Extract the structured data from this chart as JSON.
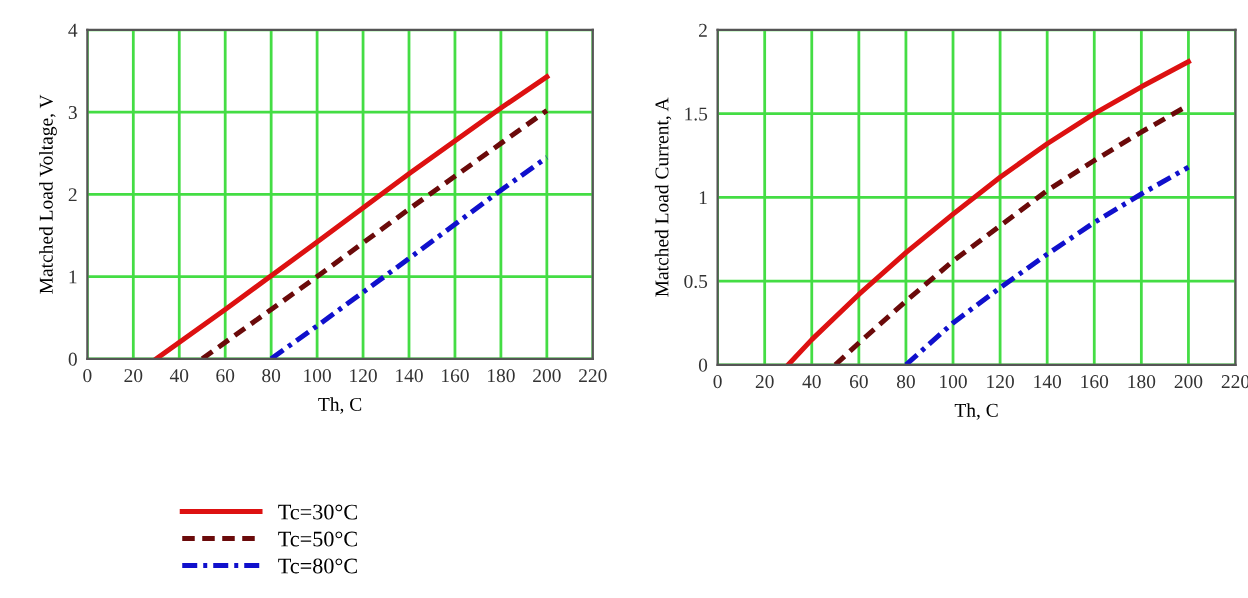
{
  "chart_data": [
    {
      "type": "line",
      "xlabel": "Th, C",
      "ylabel": "Matched Load Voltage, V",
      "xlim": [
        0,
        220
      ],
      "ylim": [
        0,
        4
      ],
      "xticks": [
        0,
        20,
        40,
        60,
        80,
        100,
        120,
        140,
        160,
        180,
        200,
        220
      ],
      "yticks": [
        0,
        1,
        2,
        3,
        4
      ],
      "grid": true,
      "legend": "bottom",
      "series": [
        {
          "name": "Tc=30°C",
          "color": "#dd1111",
          "line_style": "solid",
          "x": [
            30,
            60,
            100,
            140,
            180,
            200
          ],
          "values": [
            0,
            0.6,
            1.42,
            2.25,
            3.05,
            3.43
          ]
        },
        {
          "name": "Tc=50°C",
          "color": "#6b0a0a",
          "line_style": "dashed",
          "x": [
            50,
            80,
            100,
            140,
            180,
            200
          ],
          "values": [
            0,
            0.6,
            1.0,
            1.82,
            2.62,
            3.02
          ]
        },
        {
          "name": "Tc=80°C",
          "color": "#1010cc",
          "line_style": "dashdot",
          "x": [
            80,
            100,
            140,
            180,
            200
          ],
          "values": [
            0,
            0.4,
            1.22,
            2.05,
            2.45
          ]
        }
      ]
    },
    {
      "type": "line",
      "xlabel": "Th, C",
      "ylabel": "Matched Load Current, A",
      "xlim": [
        0,
        220
      ],
      "ylim": [
        0,
        2
      ],
      "xticks": [
        0,
        20,
        40,
        60,
        80,
        100,
        120,
        140,
        160,
        180,
        200,
        220
      ],
      "yticks": [
        0,
        0.5,
        1,
        1.5,
        2
      ],
      "grid": true,
      "series": [
        {
          "color": "#dd1111",
          "line_style": "solid",
          "x": [
            30,
            40,
            60,
            80,
            100,
            120,
            140,
            160,
            180,
            200
          ],
          "values": [
            0,
            0.15,
            0.42,
            0.67,
            0.9,
            1.12,
            1.32,
            1.5,
            1.66,
            1.81
          ]
        },
        {
          "color": "#6b0a0a",
          "line_style": "dashed",
          "x": [
            50,
            60,
            80,
            100,
            120,
            140,
            160,
            180,
            200
          ],
          "values": [
            0,
            0.13,
            0.38,
            0.62,
            0.83,
            1.04,
            1.22,
            1.39,
            1.55
          ]
        },
        {
          "color": "#1010cc",
          "line_style": "dashdot",
          "x": [
            80,
            100,
            120,
            140,
            160,
            180,
            200
          ],
          "values": [
            0,
            0.25,
            0.46,
            0.66,
            0.85,
            1.02,
            1.18
          ]
        }
      ]
    }
  ]
}
